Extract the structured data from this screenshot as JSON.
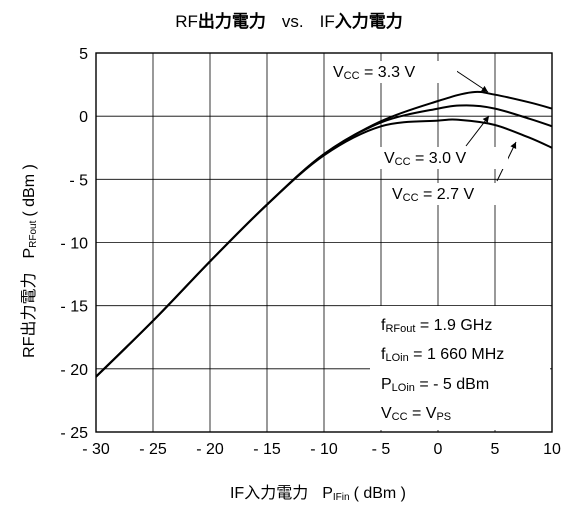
{
  "chart_data": {
    "type": "line",
    "title": {
      "part1_prefix": "RF",
      "part1_bold": "出力電力",
      "part_vs": "vs.",
      "part2_prefix": "IF",
      "part2_bold": "入力電力"
    },
    "xlabel": {
      "main": "IF入力電力",
      "sym": "P",
      "sub": "IFin",
      "unit": "( dBm )"
    },
    "ylabel": {
      "main": "RF出力電力",
      "sym": "P",
      "sub": "RFout",
      "unit": "( dBm )"
    },
    "xlim": [
      -30,
      10
    ],
    "ylim": [
      -25,
      5
    ],
    "xticks": [
      -30,
      -25,
      -20,
      -15,
      -10,
      -5,
      0,
      5,
      10
    ],
    "xtick_labels": [
      "- 30",
      "- 25",
      "- 20",
      "- 15",
      "- 10",
      "- 5",
      "0",
      "5",
      "10"
    ],
    "yticks": [
      5,
      0,
      -5,
      -10,
      -15,
      -20,
      -25
    ],
    "ytick_labels": [
      "5",
      "0",
      "- 5",
      "- 10",
      "- 15",
      "- 20",
      "- 25"
    ],
    "grid": true,
    "series": [
      {
        "name": "Vcc = 3.3 V",
        "label": {
          "pre": "V",
          "sub": "CC",
          "post": " = 3.3 V"
        },
        "x": [
          -31,
          -25,
          -20,
          -15,
          -10,
          -5,
          0,
          3,
          5,
          8,
          10
        ],
        "y": [
          -21.5,
          -16.2,
          -11.5,
          -7.0,
          -3.0,
          -0.4,
          1.2,
          1.9,
          1.7,
          1.1,
          0.6
        ]
      },
      {
        "name": "Vcc = 3.0 V",
        "label": {
          "pre": "V",
          "sub": "CC",
          "post": " = 3.0 V"
        },
        "x": [
          -31,
          -25,
          -20,
          -15,
          -10,
          -5,
          0,
          2.5,
          5,
          8,
          10
        ],
        "y": [
          -21.5,
          -16.2,
          -11.5,
          -7.0,
          -3.0,
          -0.5,
          0.6,
          0.85,
          0.6,
          -0.2,
          -0.8
        ]
      },
      {
        "name": "Vcc = 2.7 V",
        "label": {
          "pre": "V",
          "sub": "CC",
          "post": " = 2.7 V"
        },
        "x": [
          -31,
          -25,
          -20,
          -15,
          -10,
          -5,
          0,
          2,
          5,
          8,
          10
        ],
        "y": [
          -21.5,
          -16.2,
          -11.5,
          -7.0,
          -3.1,
          -0.8,
          -0.35,
          -0.3,
          -0.7,
          -1.7,
          -2.5
        ]
      }
    ],
    "conditions": [
      {
        "pre": "f",
        "sub": "RFout",
        "post": " = 1.9 GHz"
      },
      {
        "pre": "f",
        "sub": "LOin",
        "post": " = 1 660 MHz"
      },
      {
        "pre": "P",
        "sub": "LOin",
        "post": " =  - 5 dBm"
      },
      {
        "pre": "V",
        "sub": "CC",
        "post": " = V",
        "sub2": "PS"
      }
    ]
  }
}
